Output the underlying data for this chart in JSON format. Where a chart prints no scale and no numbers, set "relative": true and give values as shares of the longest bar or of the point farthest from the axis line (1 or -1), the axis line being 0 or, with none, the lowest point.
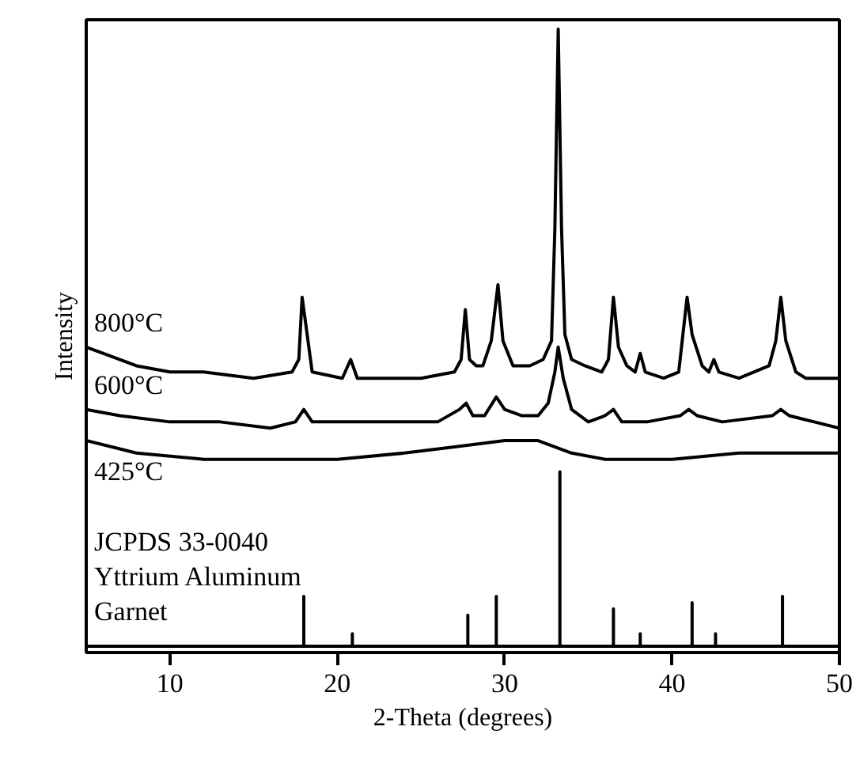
{
  "chart_data": {
    "type": "line",
    "relative": true,
    "xlabel": "2-Theta (degrees)",
    "ylabel": "Intensity",
    "xlim": [
      5,
      50
    ],
    "xticks": [
      10,
      20,
      30,
      40,
      50
    ],
    "grid": false,
    "marker": "none",
    "line_style": "solid",
    "tick_labels": "x",
    "series": [
      {
        "name": "800°C",
        "color": "#000000",
        "x": [
          5,
          6,
          8,
          10,
          12,
          15,
          17.3,
          17.7,
          17.9,
          18.1,
          18.5,
          20.3,
          20.8,
          21.2,
          22,
          25,
          27,
          27.4,
          27.65,
          27.9,
          28.3,
          28.7,
          29.2,
          29.6,
          29.9,
          30.5,
          31.5,
          32.3,
          32.8,
          33.0,
          33.2,
          33.4,
          33.6,
          34.0,
          34.8,
          35.8,
          36.2,
          36.5,
          36.8,
          37.3,
          37.8,
          38.1,
          38.4,
          39.5,
          40.4,
          40.9,
          41.2,
          41.8,
          42.2,
          42.5,
          42.8,
          44,
          45.8,
          46.2,
          46.5,
          46.8,
          47.4,
          48,
          50
        ],
        "values": [
          0.49,
          0.48,
          0.46,
          0.45,
          0.45,
          0.44,
          0.45,
          0.47,
          0.57,
          0.53,
          0.45,
          0.44,
          0.47,
          0.44,
          0.44,
          0.44,
          0.45,
          0.47,
          0.55,
          0.47,
          0.46,
          0.46,
          0.5,
          0.59,
          0.5,
          0.46,
          0.46,
          0.47,
          0.5,
          0.68,
          1.0,
          0.68,
          0.51,
          0.47,
          0.46,
          0.45,
          0.47,
          0.57,
          0.49,
          0.46,
          0.45,
          0.48,
          0.45,
          0.44,
          0.45,
          0.57,
          0.51,
          0.46,
          0.45,
          0.47,
          0.45,
          0.44,
          0.46,
          0.5,
          0.57,
          0.5,
          0.45,
          0.44,
          0.44
        ]
      },
      {
        "name": "600°C",
        "color": "#000000",
        "x": [
          5,
          7,
          10,
          13,
          16,
          17.5,
          18.0,
          18.5,
          20,
          23,
          26,
          27.3,
          27.7,
          28.1,
          28.8,
          29.5,
          30.0,
          31,
          32,
          32.6,
          33.0,
          33.2,
          33.5,
          34,
          35,
          36,
          36.5,
          37,
          38.5,
          40.5,
          41.0,
          41.5,
          43,
          46,
          46.5,
          47,
          48.5,
          50
        ],
        "values": [
          0.39,
          0.38,
          0.37,
          0.37,
          0.36,
          0.37,
          0.39,
          0.37,
          0.37,
          0.37,
          0.37,
          0.39,
          0.4,
          0.38,
          0.38,
          0.41,
          0.39,
          0.38,
          0.38,
          0.4,
          0.45,
          0.49,
          0.44,
          0.39,
          0.37,
          0.38,
          0.39,
          0.37,
          0.37,
          0.38,
          0.39,
          0.38,
          0.37,
          0.38,
          0.39,
          0.38,
          0.37,
          0.36
        ]
      },
      {
        "name": "425°C",
        "color": "#000000",
        "x": [
          5,
          8,
          12,
          16,
          20,
          24,
          27,
          30,
          32,
          34,
          36,
          38,
          40,
          44,
          50
        ],
        "values": [
          0.34,
          0.32,
          0.31,
          0.31,
          0.31,
          0.32,
          0.33,
          0.34,
          0.34,
          0.32,
          0.31,
          0.31,
          0.31,
          0.32,
          0.32
        ]
      },
      {
        "color": "#000000",
        "x": [
          5,
          18.0,
          18.0,
          18.0,
          20.9,
          20.9,
          20.9,
          27.8,
          27.8,
          27.8,
          29.5,
          29.5,
          29.5,
          33.3,
          33.3,
          33.3,
          36.5,
          36.5,
          36.5,
          38.1,
          38.1,
          38.1,
          41.2,
          41.2,
          41.2,
          42.6,
          42.6,
          42.6,
          46.6,
          46.6,
          46.6,
          50
        ],
        "values": [
          0.01,
          0.01,
          0.09,
          0.01,
          0.01,
          0.03,
          0.01,
          0.01,
          0.06,
          0.01,
          0.01,
          0.09,
          0.01,
          0.01,
          0.29,
          0.01,
          0.01,
          0.07,
          0.01,
          0.01,
          0.03,
          0.01,
          0.01,
          0.08,
          0.01,
          0.01,
          0.03,
          0.01,
          0.01,
          0.09,
          0.01,
          0.01
        ]
      }
    ],
    "annotations": [
      "JCPDS 33-0040",
      "Yttrium Aluminum",
      " Garnet"
    ]
  }
}
